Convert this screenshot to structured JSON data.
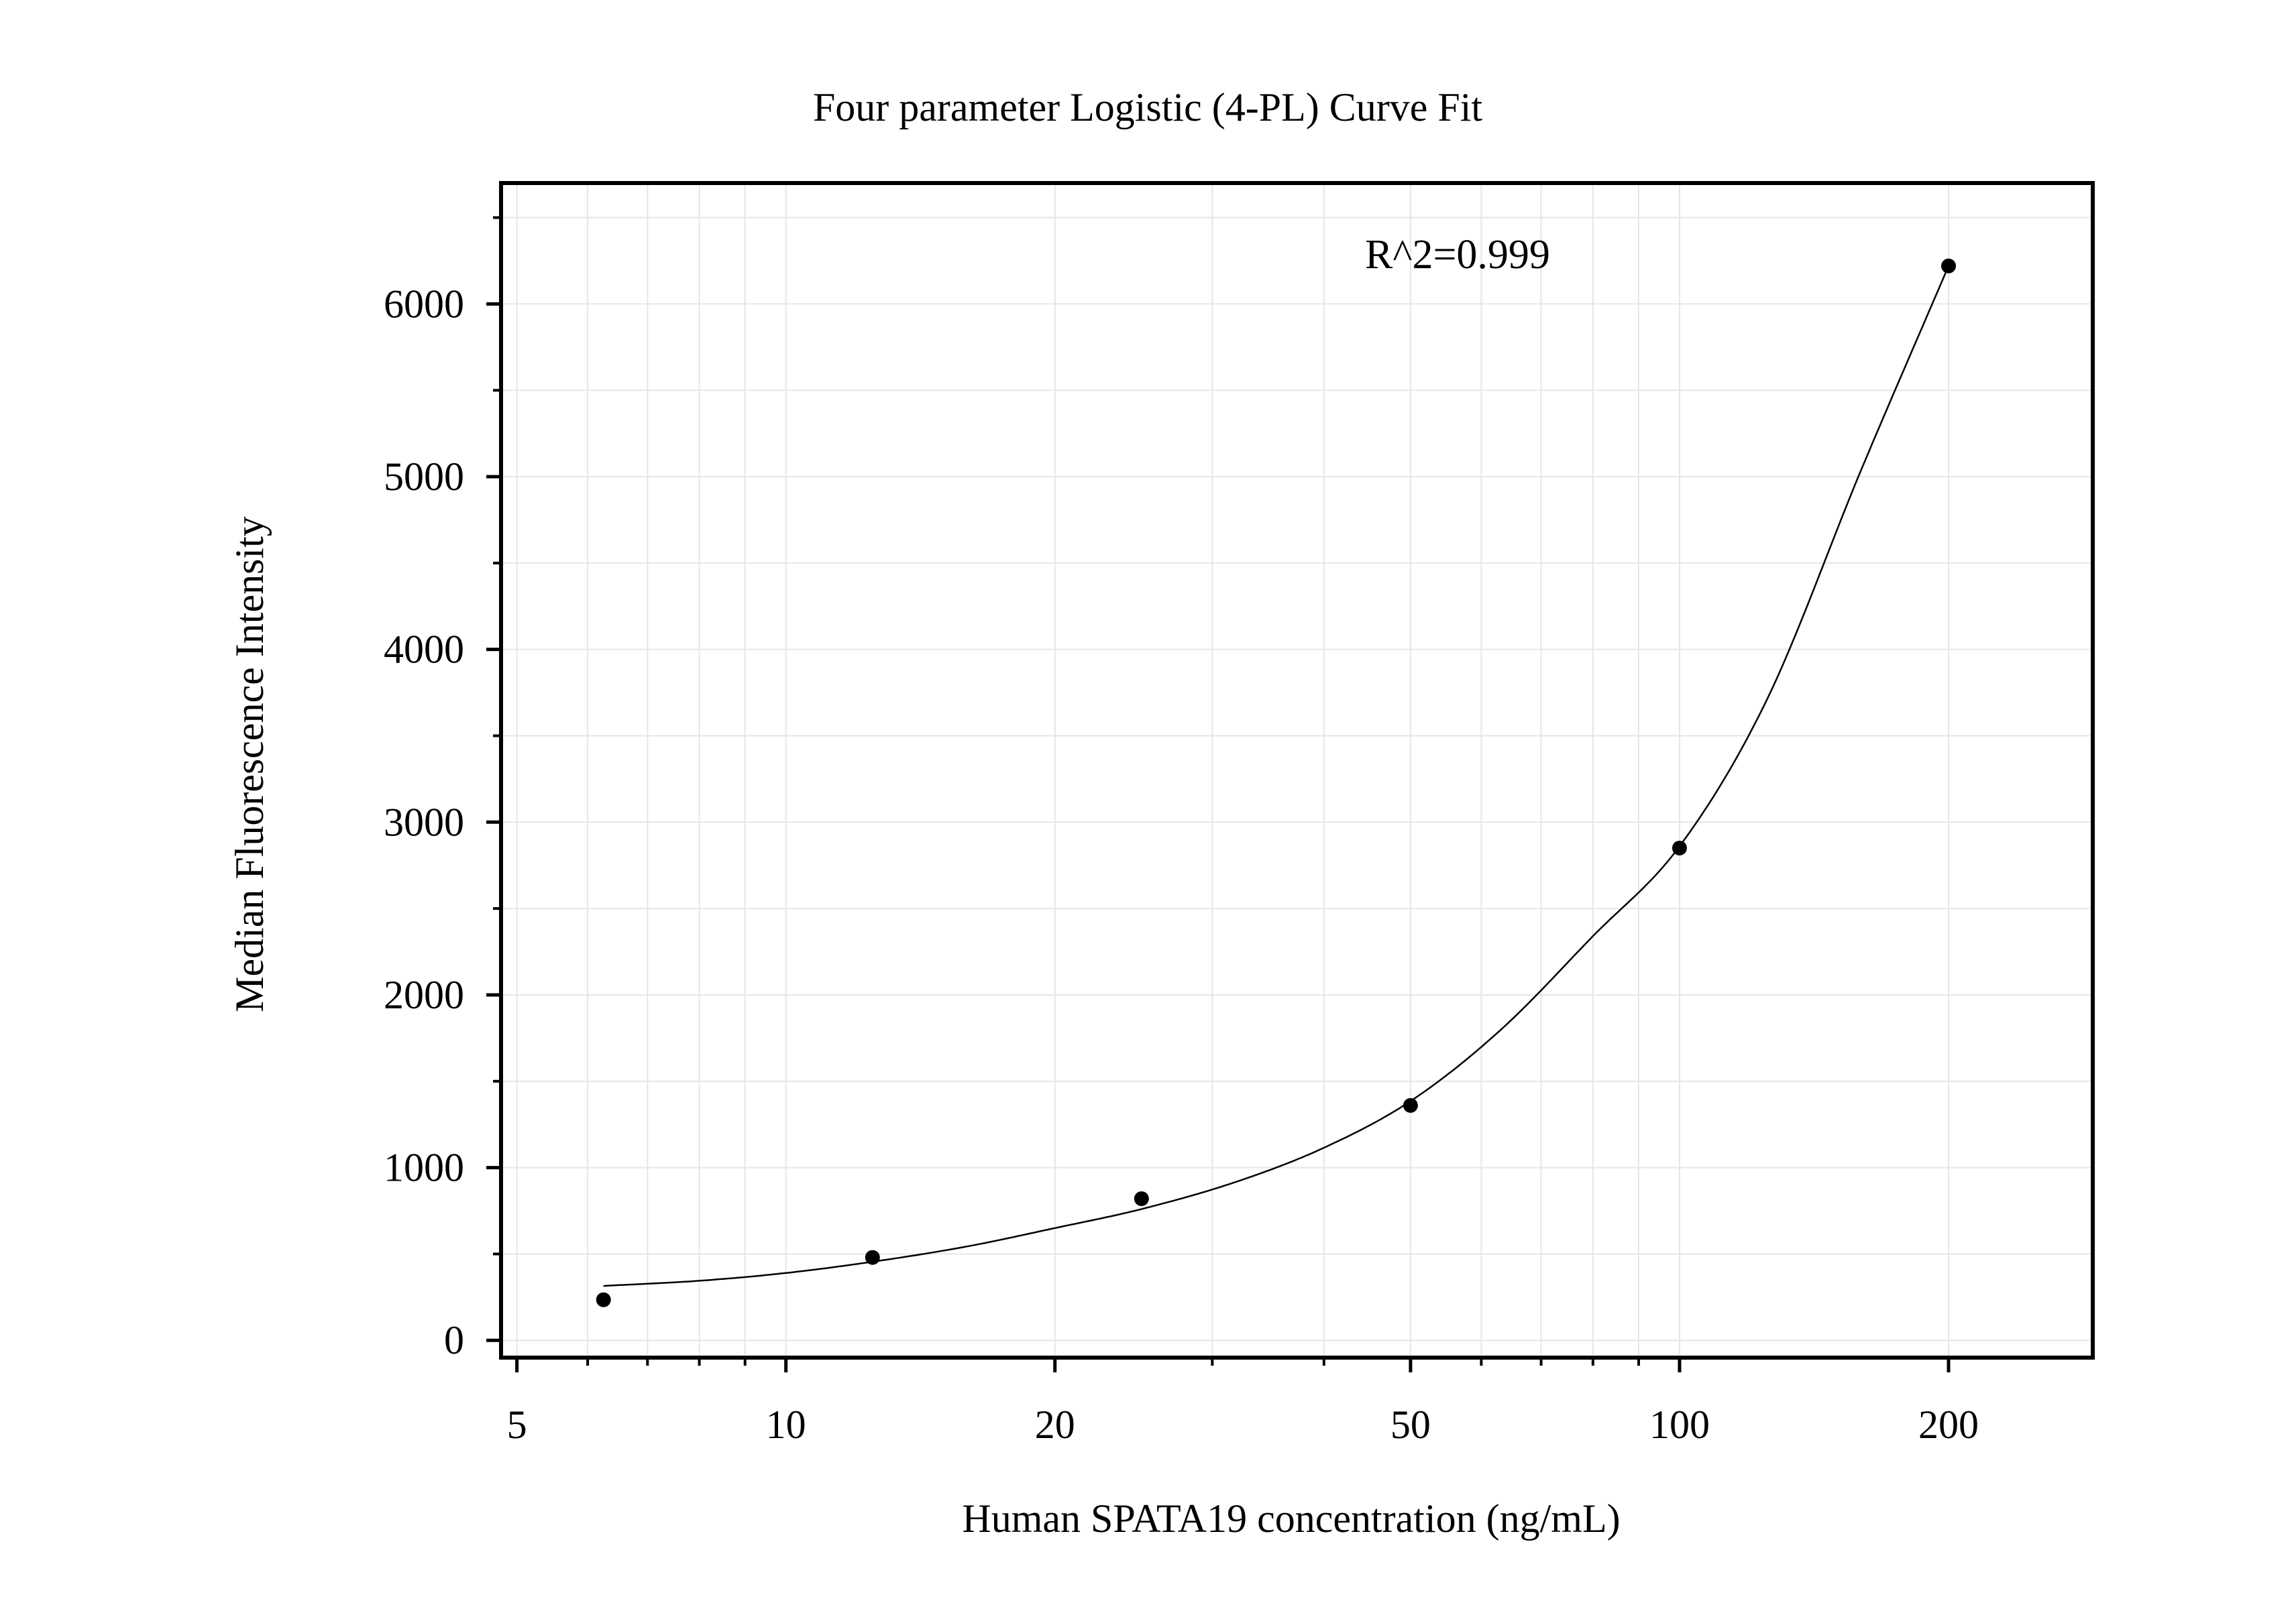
{
  "chart_data": {
    "type": "scatter",
    "title": "Four parameter Logistic (4-PL) Curve Fit",
    "xlabel": "Human SPATA19 concentration (ng/mL)",
    "ylabel": "Median Fluorescence Intensity",
    "annotation": "R^2=0.999",
    "x_scale": "log",
    "xlim": [
      4.8,
      290
    ],
    "ylim": [
      -100,
      6700
    ],
    "x_ticks": [
      5,
      10,
      20,
      50,
      100,
      200
    ],
    "x_tick_labels": [
      "5",
      "10",
      "20",
      "50",
      "100",
      "200"
    ],
    "y_ticks": [
      0,
      1000,
      2000,
      3000,
      4000,
      5000,
      6000
    ],
    "y_tick_labels": [
      "0",
      "1000",
      "2000",
      "3000",
      "4000",
      "5000",
      "6000"
    ],
    "grid": true,
    "legend": "none",
    "colors": {
      "points": "#000000",
      "curve": "#000000",
      "grid": "#e6e6e6"
    },
    "series": [
      {
        "type": "scatter",
        "x": [
          6.25,
          12.5,
          25,
          50,
          100,
          200
        ],
        "y": [
          235,
          480,
          820,
          1360,
          2850,
          6220
        ]
      },
      {
        "type": "line",
        "curve": "4-PL fit",
        "x": [
          6.25,
          8,
          10,
          12.5,
          16,
          20,
          25,
          32,
          40,
          50,
          63,
          80,
          100,
          125,
          160,
          200
        ],
        "y": [
          315,
          345,
          390,
          455,
          545,
          650,
          760,
          920,
          1115,
          1385,
          1795,
          2340,
          2860,
          3700,
          5050,
          6220
        ]
      }
    ]
  }
}
